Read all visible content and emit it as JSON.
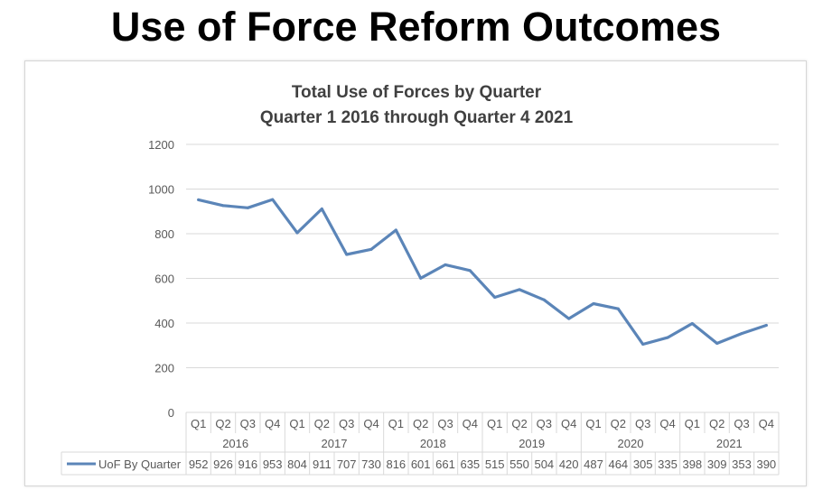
{
  "slide": {
    "title": "Use of Force Reform Outcomes"
  },
  "colors": {
    "series_line": "#5b85b8",
    "grid": "#d9d9d9",
    "text": "#595959",
    "title_text": "#404040"
  },
  "chart_data": {
    "type": "line",
    "title": "Total Use of Forces by Quarter",
    "subtitle": "Quarter 1 2016 through Quarter 4 2021",
    "ylim": [
      0,
      1200
    ],
    "yticks": [
      0,
      200,
      400,
      600,
      800,
      1000,
      1200
    ],
    "grid": true,
    "legend_position": "bottom-left data table",
    "years": [
      "2016",
      "2017",
      "2018",
      "2019",
      "2020",
      "2021"
    ],
    "quarters": [
      "Q1",
      "Q2",
      "Q3",
      "Q4"
    ],
    "series": [
      {
        "name": "UoF By Quarter",
        "values": [
          952,
          926,
          916,
          953,
          804,
          911,
          707,
          730,
          816,
          601,
          661,
          635,
          515,
          550,
          504,
          420,
          487,
          464,
          305,
          335,
          398,
          309,
          353,
          390
        ]
      }
    ]
  }
}
